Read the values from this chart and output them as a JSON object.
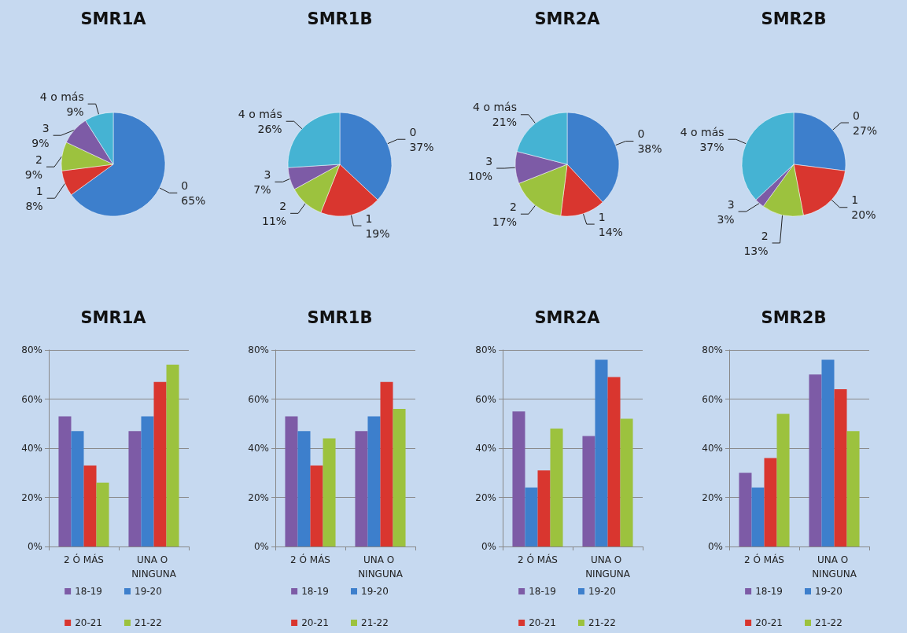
{
  "chart_data": [
    {
      "type": "pie",
      "title": "SMR1A",
      "categories": [
        "0",
        "1",
        "2",
        "3",
        "4 o más"
      ],
      "values": [
        65,
        8,
        9,
        9,
        9
      ],
      "value_labels": [
        "65%",
        "8%",
        "9%",
        "9%",
        "9%"
      ],
      "colors": [
        "#3d7fcc",
        "#d9362f",
        "#9cc23e",
        "#7d5ba6",
        "#45b3d3"
      ]
    },
    {
      "type": "pie",
      "title": "SMR1B",
      "categories": [
        "0",
        "1",
        "2",
        "3",
        "4 o más"
      ],
      "values": [
        37,
        19,
        11,
        7,
        26
      ],
      "value_labels": [
        "37%",
        "19%",
        "11%",
        "7%",
        "26%"
      ],
      "colors": [
        "#3d7fcc",
        "#d9362f",
        "#9cc23e",
        "#7d5ba6",
        "#45b3d3"
      ]
    },
    {
      "type": "pie",
      "title": "SMR2A",
      "categories": [
        "0",
        "1",
        "2",
        "3",
        "4 o más"
      ],
      "values": [
        38,
        14,
        17,
        10,
        21
      ],
      "value_labels": [
        "38%",
        "14%",
        "17%",
        "10%",
        "21%"
      ],
      "colors": [
        "#3d7fcc",
        "#d9362f",
        "#9cc23e",
        "#7d5ba6",
        "#45b3d3"
      ]
    },
    {
      "type": "pie",
      "title": "SMR2B",
      "categories": [
        "0",
        "1",
        "2",
        "3",
        "4 o más"
      ],
      "values": [
        27,
        20,
        13,
        3,
        37
      ],
      "value_labels": [
        "27%",
        "20%",
        "13%",
        "3%",
        "37%"
      ],
      "colors": [
        "#3d7fcc",
        "#d9362f",
        "#9cc23e",
        "#7d5ba6",
        "#45b3d3"
      ]
    },
    {
      "type": "bar",
      "title": "SMR1A",
      "categories": [
        "2 Ó MÁS",
        "UNA O NINGUNA"
      ],
      "ylim": [
        0,
        80
      ],
      "yticks": [
        {
          "value": 0,
          "label": "0%"
        },
        {
          "value": 20,
          "label": "20%"
        },
        {
          "value": 40,
          "label": "40%"
        },
        {
          "value": 60,
          "label": "60%"
        },
        {
          "value": 80,
          "label": "80%"
        }
      ],
      "grid": "y",
      "legend": "bottom",
      "series": [
        {
          "name": "18-19",
          "color": "#7d5ba6",
          "values": [
            53,
            47
          ]
        },
        {
          "name": "19-20",
          "color": "#3d7fcc",
          "values": [
            47,
            53
          ]
        },
        {
          "name": "20-21",
          "color": "#d9362f",
          "values": [
            33,
            67
          ]
        },
        {
          "name": "21-22",
          "color": "#9cc23e",
          "values": [
            26,
            74
          ]
        }
      ]
    },
    {
      "type": "bar",
      "title": "SMR1B",
      "categories": [
        "2 Ó MÁS",
        "UNA O NINGUNA"
      ],
      "ylim": [
        0,
        80
      ],
      "yticks": [
        {
          "value": 0,
          "label": "0%"
        },
        {
          "value": 20,
          "label": "20%"
        },
        {
          "value": 40,
          "label": "40%"
        },
        {
          "value": 60,
          "label": "60%"
        },
        {
          "value": 80,
          "label": "80%"
        }
      ],
      "grid": "y",
      "legend": "bottom",
      "series": [
        {
          "name": "18-19",
          "color": "#7d5ba6",
          "values": [
            53,
            47
          ]
        },
        {
          "name": "19-20",
          "color": "#3d7fcc",
          "values": [
            47,
            53
          ]
        },
        {
          "name": "20-21",
          "color": "#d9362f",
          "values": [
            33,
            67
          ]
        },
        {
          "name": "21-22",
          "color": "#9cc23e",
          "values": [
            44,
            56
          ]
        }
      ]
    },
    {
      "type": "bar",
      "title": "SMR2A",
      "categories": [
        "2 Ó MÁS",
        "UNA O NINGUNA"
      ],
      "ylim": [
        0,
        80
      ],
      "yticks": [
        {
          "value": 0,
          "label": "0%"
        },
        {
          "value": 20,
          "label": "20%"
        },
        {
          "value": 40,
          "label": "40%"
        },
        {
          "value": 60,
          "label": "60%"
        },
        {
          "value": 80,
          "label": "80%"
        }
      ],
      "grid": "y",
      "legend": "bottom",
      "series": [
        {
          "name": "18-19",
          "color": "#7d5ba6",
          "values": [
            55,
            45
          ]
        },
        {
          "name": "19-20",
          "color": "#3d7fcc",
          "values": [
            24,
            76
          ]
        },
        {
          "name": "20-21",
          "color": "#d9362f",
          "values": [
            31,
            69
          ]
        },
        {
          "name": "21-22",
          "color": "#9cc23e",
          "values": [
            48,
            52
          ]
        }
      ]
    },
    {
      "type": "bar",
      "title": "SMR2B",
      "categories": [
        "2 Ó MÁS",
        "UNA O NINGUNA"
      ],
      "ylim": [
        0,
        80
      ],
      "yticks": [
        {
          "value": 0,
          "label": "0%"
        },
        {
          "value": 20,
          "label": "20%"
        },
        {
          "value": 40,
          "label": "40%"
        },
        {
          "value": 60,
          "label": "60%"
        },
        {
          "value": 80,
          "label": "80%"
        }
      ],
      "grid": "y",
      "legend": "bottom",
      "series": [
        {
          "name": "18-19",
          "color": "#7d5ba6",
          "values": [
            30,
            70
          ]
        },
        {
          "name": "19-20",
          "color": "#3d7fcc",
          "values": [
            24,
            76
          ]
        },
        {
          "name": "20-21",
          "color": "#d9362f",
          "values": [
            36,
            64
          ]
        },
        {
          "name": "21-22",
          "color": "#9cc23e",
          "values": [
            54,
            47
          ]
        }
      ]
    }
  ]
}
